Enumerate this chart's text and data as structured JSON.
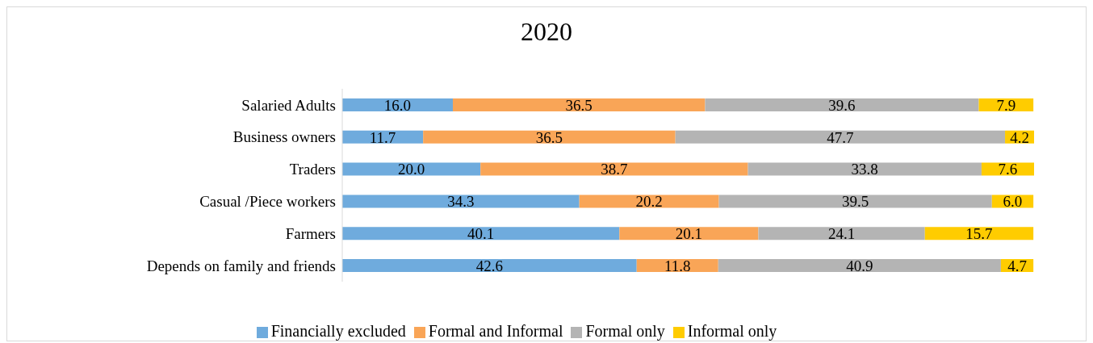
{
  "chart_data": {
    "type": "bar",
    "orientation": "horizontal",
    "stacked": true,
    "title": "2020",
    "categories": [
      "Salaried Adults",
      "Business owners",
      "Traders",
      "Casual /Piece workers",
      "Farmers",
      "Depends on family and friends"
    ],
    "series": [
      {
        "name": "Financially  excluded",
        "color": "#6fabdd",
        "values": [
          16.0,
          11.7,
          20.0,
          34.3,
          40.1,
          42.6
        ],
        "value_labels": [
          "16.0",
          "11.7",
          "20.0",
          "34.3",
          "40.1",
          "42.6"
        ]
      },
      {
        "name": "Formal and Informal",
        "color": "#f9a557",
        "values": [
          36.5,
          36.5,
          38.7,
          20.2,
          20.1,
          11.8
        ],
        "value_labels": [
          "36.5",
          "36.5",
          "38.7",
          "20.2",
          "20.1",
          "11.8"
        ]
      },
      {
        "name": "Formal only",
        "color": "#b4b4b4",
        "values": [
          39.6,
          47.7,
          33.8,
          39.5,
          24.1,
          40.9
        ],
        "value_labels": [
          "39.6",
          "47.7",
          "33.8",
          "39.5",
          "24.1",
          "40.9"
        ]
      },
      {
        "name": "Informal only",
        "color": "#ffcc00",
        "values": [
          7.9,
          4.2,
          7.6,
          6.0,
          15.7,
          4.7
        ],
        "value_labels": [
          "7.9",
          "4.2",
          "7.6",
          "6.0",
          "15.7",
          "4.7"
        ]
      }
    ],
    "legend": "bottom"
  }
}
